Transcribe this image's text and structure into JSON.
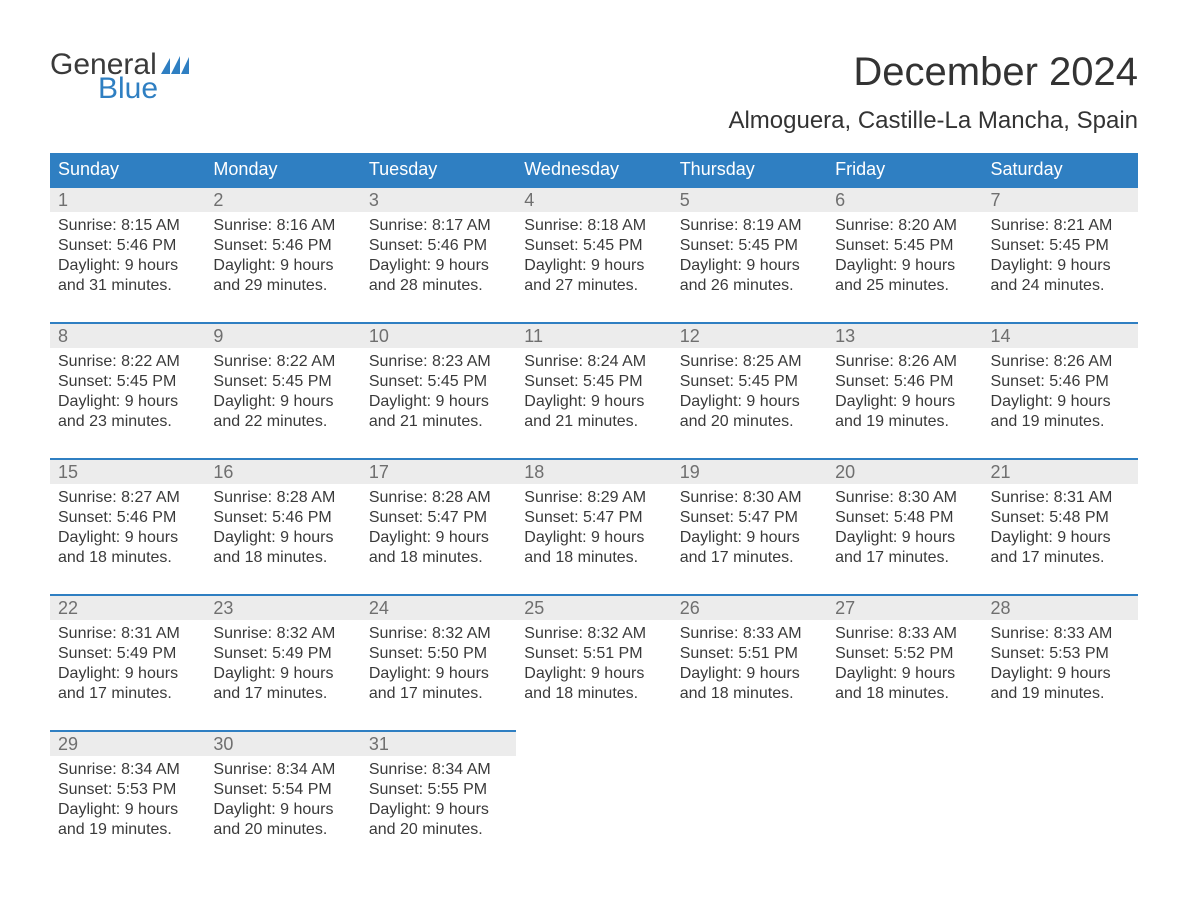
{
  "colors": {
    "header_bg": "#2f7fc2",
    "header_text": "#ffffff",
    "daynum_bg": "#ececec",
    "daynum_border_top": "#2f7fc2",
    "daynum_text": "#6f6f6f",
    "body_text": "#3a3a3a",
    "logo_blue": "#2f7fc2",
    "page_bg": "#ffffff"
  },
  "typography": {
    "title_fontsize_pt": 30,
    "location_fontsize_pt": 18,
    "dayname_fontsize_pt": 14,
    "daynum_fontsize_pt": 14,
    "info_fontsize_pt": 12,
    "font_family": "Arial"
  },
  "logo": {
    "line1": "General",
    "line2": "Blue"
  },
  "title": "December 2024",
  "location": "Almoguera, Castille-La Mancha, Spain",
  "daynames": [
    "Sunday",
    "Monday",
    "Tuesday",
    "Wednesday",
    "Thursday",
    "Friday",
    "Saturday"
  ],
  "weeks": [
    [
      {
        "n": "1",
        "sunrise": "Sunrise: 8:15 AM",
        "sunset": "Sunset: 5:46 PM",
        "daylight": "Daylight: 9 hours and 31 minutes."
      },
      {
        "n": "2",
        "sunrise": "Sunrise: 8:16 AM",
        "sunset": "Sunset: 5:46 PM",
        "daylight": "Daylight: 9 hours and 29 minutes."
      },
      {
        "n": "3",
        "sunrise": "Sunrise: 8:17 AM",
        "sunset": "Sunset: 5:46 PM",
        "daylight": "Daylight: 9 hours and 28 minutes."
      },
      {
        "n": "4",
        "sunrise": "Sunrise: 8:18 AM",
        "sunset": "Sunset: 5:45 PM",
        "daylight": "Daylight: 9 hours and 27 minutes."
      },
      {
        "n": "5",
        "sunrise": "Sunrise: 8:19 AM",
        "sunset": "Sunset: 5:45 PM",
        "daylight": "Daylight: 9 hours and 26 minutes."
      },
      {
        "n": "6",
        "sunrise": "Sunrise: 8:20 AM",
        "sunset": "Sunset: 5:45 PM",
        "daylight": "Daylight: 9 hours and 25 minutes."
      },
      {
        "n": "7",
        "sunrise": "Sunrise: 8:21 AM",
        "sunset": "Sunset: 5:45 PM",
        "daylight": "Daylight: 9 hours and 24 minutes."
      }
    ],
    [
      {
        "n": "8",
        "sunrise": "Sunrise: 8:22 AM",
        "sunset": "Sunset: 5:45 PM",
        "daylight": "Daylight: 9 hours and 23 minutes."
      },
      {
        "n": "9",
        "sunrise": "Sunrise: 8:22 AM",
        "sunset": "Sunset: 5:45 PM",
        "daylight": "Daylight: 9 hours and 22 minutes."
      },
      {
        "n": "10",
        "sunrise": "Sunrise: 8:23 AM",
        "sunset": "Sunset: 5:45 PM",
        "daylight": "Daylight: 9 hours and 21 minutes."
      },
      {
        "n": "11",
        "sunrise": "Sunrise: 8:24 AM",
        "sunset": "Sunset: 5:45 PM",
        "daylight": "Daylight: 9 hours and 21 minutes."
      },
      {
        "n": "12",
        "sunrise": "Sunrise: 8:25 AM",
        "sunset": "Sunset: 5:45 PM",
        "daylight": "Daylight: 9 hours and 20 minutes."
      },
      {
        "n": "13",
        "sunrise": "Sunrise: 8:26 AM",
        "sunset": "Sunset: 5:46 PM",
        "daylight": "Daylight: 9 hours and 19 minutes."
      },
      {
        "n": "14",
        "sunrise": "Sunrise: 8:26 AM",
        "sunset": "Sunset: 5:46 PM",
        "daylight": "Daylight: 9 hours and 19 minutes."
      }
    ],
    [
      {
        "n": "15",
        "sunrise": "Sunrise: 8:27 AM",
        "sunset": "Sunset: 5:46 PM",
        "daylight": "Daylight: 9 hours and 18 minutes."
      },
      {
        "n": "16",
        "sunrise": "Sunrise: 8:28 AM",
        "sunset": "Sunset: 5:46 PM",
        "daylight": "Daylight: 9 hours and 18 minutes."
      },
      {
        "n": "17",
        "sunrise": "Sunrise: 8:28 AM",
        "sunset": "Sunset: 5:47 PM",
        "daylight": "Daylight: 9 hours and 18 minutes."
      },
      {
        "n": "18",
        "sunrise": "Sunrise: 8:29 AM",
        "sunset": "Sunset: 5:47 PM",
        "daylight": "Daylight: 9 hours and 18 minutes."
      },
      {
        "n": "19",
        "sunrise": "Sunrise: 8:30 AM",
        "sunset": "Sunset: 5:47 PM",
        "daylight": "Daylight: 9 hours and 17 minutes."
      },
      {
        "n": "20",
        "sunrise": "Sunrise: 8:30 AM",
        "sunset": "Sunset: 5:48 PM",
        "daylight": "Daylight: 9 hours and 17 minutes."
      },
      {
        "n": "21",
        "sunrise": "Sunrise: 8:31 AM",
        "sunset": "Sunset: 5:48 PM",
        "daylight": "Daylight: 9 hours and 17 minutes."
      }
    ],
    [
      {
        "n": "22",
        "sunrise": "Sunrise: 8:31 AM",
        "sunset": "Sunset: 5:49 PM",
        "daylight": "Daylight: 9 hours and 17 minutes."
      },
      {
        "n": "23",
        "sunrise": "Sunrise: 8:32 AM",
        "sunset": "Sunset: 5:49 PM",
        "daylight": "Daylight: 9 hours and 17 minutes."
      },
      {
        "n": "24",
        "sunrise": "Sunrise: 8:32 AM",
        "sunset": "Sunset: 5:50 PM",
        "daylight": "Daylight: 9 hours and 17 minutes."
      },
      {
        "n": "25",
        "sunrise": "Sunrise: 8:32 AM",
        "sunset": "Sunset: 5:51 PM",
        "daylight": "Daylight: 9 hours and 18 minutes."
      },
      {
        "n": "26",
        "sunrise": "Sunrise: 8:33 AM",
        "sunset": "Sunset: 5:51 PM",
        "daylight": "Daylight: 9 hours and 18 minutes."
      },
      {
        "n": "27",
        "sunrise": "Sunrise: 8:33 AM",
        "sunset": "Sunset: 5:52 PM",
        "daylight": "Daylight: 9 hours and 18 minutes."
      },
      {
        "n": "28",
        "sunrise": "Sunrise: 8:33 AM",
        "sunset": "Sunset: 5:53 PM",
        "daylight": "Daylight: 9 hours and 19 minutes."
      }
    ],
    [
      {
        "n": "29",
        "sunrise": "Sunrise: 8:34 AM",
        "sunset": "Sunset: 5:53 PM",
        "daylight": "Daylight: 9 hours and 19 minutes."
      },
      {
        "n": "30",
        "sunrise": "Sunrise: 8:34 AM",
        "sunset": "Sunset: 5:54 PM",
        "daylight": "Daylight: 9 hours and 20 minutes."
      },
      {
        "n": "31",
        "sunrise": "Sunrise: 8:34 AM",
        "sunset": "Sunset: 5:55 PM",
        "daylight": "Daylight: 9 hours and 20 minutes."
      },
      null,
      null,
      null,
      null
    ]
  ]
}
